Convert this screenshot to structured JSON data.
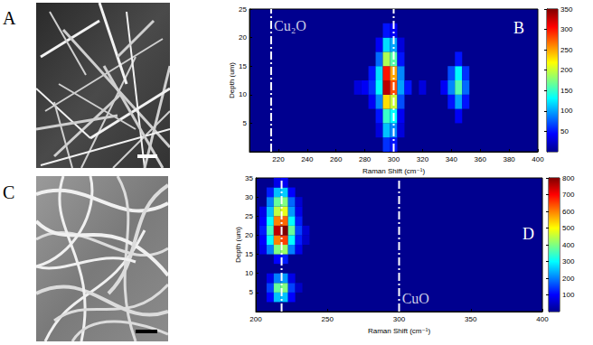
{
  "chart_data": [
    {
      "type": "image",
      "panel_label": "A"
    },
    {
      "type": "heatmap",
      "panel_label": "B",
      "x_label": "Raman Shift (cm⁻¹)",
      "y_label": "Depth (um)",
      "xlim": [
        200,
        400
      ],
      "xticks": [
        220,
        240,
        260,
        280,
        300,
        320,
        340,
        360,
        380,
        400
      ],
      "ylim": [
        0,
        25
      ],
      "yticks": [
        5,
        10,
        15,
        20,
        25
      ],
      "cell_size": [
        5,
        2.5
      ],
      "cells": [
        [
          295,
          1.25,
          60
        ],
        [
          300,
          1.25,
          50
        ],
        [
          290,
          3.75,
          30
        ],
        [
          295,
          3.75,
          110
        ],
        [
          300,
          3.75,
          90
        ],
        [
          305,
          3.75,
          30
        ],
        [
          290,
          6.25,
          50
        ],
        [
          295,
          6.25,
          150
        ],
        [
          300,
          6.25,
          130
        ],
        [
          305,
          6.25,
          40
        ],
        [
          345,
          6.25,
          40
        ],
        [
          285,
          8.75,
          40
        ],
        [
          290,
          8.75,
          90
        ],
        [
          295,
          8.75,
          230
        ],
        [
          300,
          8.75,
          200
        ],
        [
          305,
          8.75,
          70
        ],
        [
          340,
          8.75,
          50
        ],
        [
          345,
          8.75,
          100
        ],
        [
          350,
          8.75,
          50
        ],
        [
          275,
          11.25,
          30
        ],
        [
          280,
          11.25,
          40
        ],
        [
          285,
          11.25,
          60
        ],
        [
          290,
          11.25,
          130
        ],
        [
          295,
          11.25,
          330
        ],
        [
          300,
          11.25,
          280
        ],
        [
          305,
          11.25,
          100
        ],
        [
          310,
          11.25,
          50
        ],
        [
          320,
          11.25,
          30
        ],
        [
          335,
          11.25,
          40
        ],
        [
          340,
          11.25,
          90
        ],
        [
          345,
          11.25,
          160
        ],
        [
          350,
          11.25,
          80
        ],
        [
          285,
          13.75,
          50
        ],
        [
          290,
          13.75,
          120
        ],
        [
          295,
          13.75,
          300
        ],
        [
          300,
          13.75,
          250
        ],
        [
          305,
          13.75,
          90
        ],
        [
          340,
          13.75,
          70
        ],
        [
          345,
          13.75,
          130
        ],
        [
          350,
          13.75,
          60
        ],
        [
          290,
          16.25,
          80
        ],
        [
          295,
          16.25,
          190
        ],
        [
          300,
          16.25,
          160
        ],
        [
          305,
          16.25,
          50
        ],
        [
          345,
          16.25,
          50
        ],
        [
          290,
          18.75,
          40
        ],
        [
          295,
          18.75,
          120
        ],
        [
          300,
          18.75,
          100
        ],
        [
          305,
          18.75,
          30
        ],
        [
          295,
          21.25,
          50
        ],
        [
          300,
          21.25,
          40
        ]
      ],
      "colorbar": {
        "range": [
          0,
          350
        ],
        "ticks": [
          50,
          100,
          150,
          200,
          250,
          300,
          350
        ]
      },
      "annotations": [
        {
          "x": 215,
          "text": "Cu₂O",
          "text_x": 217,
          "text_y": 22
        },
        {
          "x": 300
        }
      ]
    },
    {
      "type": "image",
      "panel_label": "C"
    },
    {
      "type": "heatmap",
      "panel_label": "D",
      "x_label": "Raman Shift (cm⁻¹)",
      "y_label": "Depth (um)",
      "xlim": [
        200,
        400
      ],
      "xticks": [
        200,
        250,
        300,
        350,
        400
      ],
      "ylim": [
        0,
        35
      ],
      "yticks": [
        5,
        10,
        15,
        20,
        25,
        30,
        35
      ],
      "cell_size": [
        5,
        2.5
      ],
      "cells": [
        [
          210,
          3.75,
          100
        ],
        [
          215,
          3.75,
          250
        ],
        [
          220,
          3.75,
          250
        ],
        [
          225,
          3.75,
          100
        ],
        [
          210,
          6.25,
          150
        ],
        [
          215,
          6.25,
          380
        ],
        [
          220,
          6.25,
          400
        ],
        [
          225,
          6.25,
          150
        ],
        [
          230,
          6.25,
          50
        ],
        [
          210,
          8.75,
          80
        ],
        [
          215,
          8.75,
          200
        ],
        [
          220,
          8.75,
          220
        ],
        [
          225,
          8.75,
          80
        ],
        [
          215,
          13.75,
          100
        ],
        [
          220,
          13.75,
          120
        ],
        [
          205,
          16.25,
          80
        ],
        [
          210,
          16.25,
          200
        ],
        [
          215,
          16.25,
          400
        ],
        [
          220,
          16.25,
          420
        ],
        [
          225,
          16.25,
          200
        ],
        [
          230,
          16.25,
          80
        ],
        [
          205,
          18.75,
          100
        ],
        [
          210,
          18.75,
          300
        ],
        [
          215,
          18.75,
          600
        ],
        [
          220,
          18.75,
          650
        ],
        [
          225,
          18.75,
          300
        ],
        [
          230,
          18.75,
          120
        ],
        [
          235,
          18.75,
          50
        ],
        [
          205,
          21.25,
          120
        ],
        [
          210,
          21.25,
          350
        ],
        [
          215,
          21.25,
          750
        ],
        [
          220,
          21.25,
          800
        ],
        [
          225,
          21.25,
          380
        ],
        [
          230,
          21.25,
          150
        ],
        [
          235,
          21.25,
          60
        ],
        [
          205,
          23.75,
          100
        ],
        [
          210,
          23.75,
          300
        ],
        [
          215,
          23.75,
          600
        ],
        [
          220,
          23.75,
          620
        ],
        [
          225,
          23.75,
          300
        ],
        [
          230,
          23.75,
          120
        ],
        [
          205,
          26.25,
          80
        ],
        [
          210,
          26.25,
          250
        ],
        [
          215,
          26.25,
          450
        ],
        [
          220,
          26.25,
          480
        ],
        [
          225,
          26.25,
          220
        ],
        [
          230,
          26.25,
          80
        ],
        [
          210,
          28.75,
          200
        ],
        [
          215,
          28.75,
          380
        ],
        [
          220,
          28.75,
          400
        ],
        [
          225,
          28.75,
          180
        ],
        [
          230,
          28.75,
          60
        ],
        [
          210,
          31.25,
          120
        ],
        [
          215,
          31.25,
          250
        ],
        [
          220,
          31.25,
          260
        ],
        [
          225,
          31.25,
          100
        ],
        [
          215,
          33.75,
          80
        ],
        [
          220,
          33.75,
          90
        ]
      ],
      "colorbar": {
        "range": [
          0,
          800
        ],
        "ticks": [
          100,
          200,
          300,
          400,
          500,
          600,
          700,
          800
        ]
      },
      "annotations": [
        {
          "x": 218
        },
        {
          "x": 300,
          "text": "CuO",
          "text_x": 302,
          "text_y": 3.5
        }
      ]
    }
  ]
}
